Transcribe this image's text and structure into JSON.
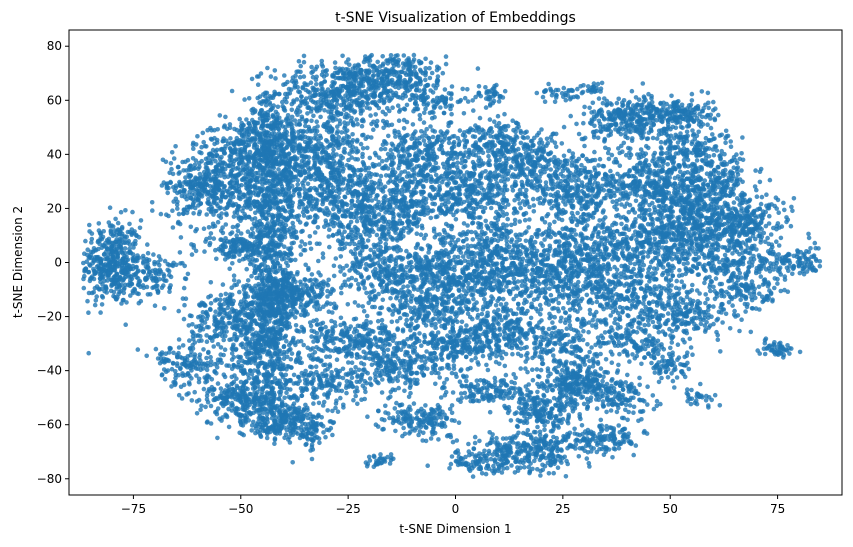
{
  "chart_data": {
    "type": "scatter",
    "title": "t-SNE Visualization of Embeddings",
    "xlabel": "t-SNE Dimension 1",
    "ylabel": "t-SNE Dimension 2",
    "xlim": [
      -90,
      90
    ],
    "ylim": [
      -86,
      86
    ],
    "xticks": [
      -75,
      -50,
      -25,
      0,
      25,
      50,
      75
    ],
    "yticks": [
      -80,
      -60,
      -40,
      -20,
      0,
      20,
      40,
      60,
      80
    ],
    "grid": false,
    "point_color": "#1f77b4",
    "point_alpha": 0.8,
    "points_approx": 10000,
    "clusters": [
      {
        "cx": -80,
        "cy": 0,
        "sx": 3.5,
        "sy": 8,
        "n": 420
      },
      {
        "cx": -70,
        "cy": -5,
        "sx": 4,
        "sy": 4,
        "n": 120
      },
      {
        "cx": -27,
        "cy": 62,
        "sx": 8,
        "sy": 6,
        "n": 500
      },
      {
        "cx": -14,
        "cy": 70,
        "sx": 6,
        "sy": 4,
        "n": 260
      },
      {
        "cx": -5,
        "cy": 60,
        "sx": 4,
        "sy": 3,
        "n": 90
      },
      {
        "cx": 8,
        "cy": 62,
        "sx": 2,
        "sy": 2,
        "n": 40
      },
      {
        "cx": 25,
        "cy": 63,
        "sx": 3,
        "sy": 2,
        "n": 40
      },
      {
        "cx": 32,
        "cy": 64,
        "sx": 1.5,
        "sy": 1.5,
        "n": 20
      },
      {
        "cx": -48,
        "cy": 42,
        "sx": 6,
        "sy": 5,
        "n": 320
      },
      {
        "cx": -52,
        "cy": 25,
        "sx": 8,
        "sy": 7,
        "n": 400
      },
      {
        "cx": -30,
        "cy": 30,
        "sx": 8,
        "sy": 10,
        "n": 520
      },
      {
        "cx": -20,
        "cy": 15,
        "sx": 6,
        "sy": 8,
        "n": 400
      },
      {
        "cx": -8,
        "cy": 40,
        "sx": 6,
        "sy": 6,
        "n": 320
      },
      {
        "cx": 5,
        "cy": 25,
        "sx": 6,
        "sy": 8,
        "n": 360
      },
      {
        "cx": 18,
        "cy": 35,
        "sx": 6,
        "sy": 6,
        "n": 320
      },
      {
        "cx": 28,
        "cy": 25,
        "sx": 5,
        "sy": 5,
        "n": 220
      },
      {
        "cx": 40,
        "cy": 53,
        "sx": 5,
        "sy": 4,
        "n": 280
      },
      {
        "cx": 52,
        "cy": 55,
        "sx": 4,
        "sy": 3,
        "n": 180
      },
      {
        "cx": 45,
        "cy": 30,
        "sx": 7,
        "sy": 7,
        "n": 450
      },
      {
        "cx": 55,
        "cy": 20,
        "sx": 6,
        "sy": 7,
        "n": 340
      },
      {
        "cx": 68,
        "cy": 15,
        "sx": 5,
        "sy": 5,
        "n": 200
      },
      {
        "cx": 78,
        "cy": 0,
        "sx": 4,
        "sy": 3,
        "n": 120
      },
      {
        "cx": 60,
        "cy": 5,
        "sx": 7,
        "sy": 8,
        "n": 420
      },
      {
        "cx": 40,
        "cy": -10,
        "sx": 8,
        "sy": 8,
        "n": 460
      },
      {
        "cx": 20,
        "cy": -5,
        "sx": 8,
        "sy": 8,
        "n": 460
      },
      {
        "cx": 0,
        "cy": -5,
        "sx": 7,
        "sy": 7,
        "n": 400
      },
      {
        "cx": -15,
        "cy": -5,
        "sx": 6,
        "sy": 6,
        "n": 260
      },
      {
        "cx": -38,
        "cy": -12,
        "sx": 5,
        "sy": 4,
        "n": 260
      },
      {
        "cx": -50,
        "cy": 5,
        "sx": 4,
        "sy": 3,
        "n": 140
      },
      {
        "cx": -52,
        "cy": -22,
        "sx": 5,
        "sy": 5,
        "n": 260
      },
      {
        "cx": -25,
        "cy": -28,
        "sx": 6,
        "sy": 4,
        "n": 260
      },
      {
        "cx": -12,
        "cy": -38,
        "sx": 6,
        "sy": 5,
        "n": 260
      },
      {
        "cx": 2,
        "cy": -30,
        "sx": 5,
        "sy": 4,
        "n": 220
      },
      {
        "cx": 12,
        "cy": -25,
        "sx": 5,
        "sy": 5,
        "n": 180
      },
      {
        "cx": -62,
        "cy": -38,
        "sx": 4,
        "sy": 4,
        "n": 140
      },
      {
        "cx": -50,
        "cy": -50,
        "sx": 5,
        "sy": 4,
        "n": 240
      },
      {
        "cx": -40,
        "cy": -58,
        "sx": 5,
        "sy": 4,
        "n": 220
      },
      {
        "cx": -30,
        "cy": -45,
        "sx": 6,
        "sy": 4,
        "n": 180
      },
      {
        "cx": -45,
        "cy": -35,
        "sx": 5,
        "sy": 4,
        "n": 160
      },
      {
        "cx": -43,
        "cy": 5,
        "sx": 4,
        "sy": 3,
        "n": 100
      },
      {
        "cx": -43,
        "cy": -25,
        "sx": 3,
        "sy": 3,
        "n": 80
      },
      {
        "cx": -43,
        "cy": -15,
        "sx": 4,
        "sy": 4,
        "n": 200
      },
      {
        "cx": -43,
        "cy": 30,
        "sx": 4,
        "sy": 4,
        "n": 120
      },
      {
        "cx": -43,
        "cy": 47,
        "sx": 3,
        "sy": 3,
        "n": 80
      },
      {
        "cx": -43,
        "cy": 38,
        "sx": 3,
        "sy": 3,
        "n": 80
      },
      {
        "cx": -43,
        "cy": 20,
        "sx": 3,
        "sy": 3,
        "n": 80
      },
      {
        "cx": -43,
        "cy": 12,
        "sx": 3,
        "sy": 3,
        "n": 80
      },
      {
        "cx": -43,
        "cy": 53,
        "sx": 3,
        "sy": 2,
        "n": 40
      },
      {
        "cx": -43,
        "cy": -5,
        "sx": 3,
        "sy": 3,
        "n": 80
      },
      {
        "cx": -43,
        "cy": -40,
        "sx": 3,
        "sy": 3,
        "n": 60
      },
      {
        "cx": -43,
        "cy": -50,
        "sx": 3,
        "sy": 3,
        "n": 60
      },
      {
        "cx": -43,
        "cy": -60,
        "sx": 3,
        "sy": 2,
        "n": 40
      },
      {
        "cx": -8,
        "cy": -58,
        "sx": 4,
        "sy": 3,
        "n": 160
      },
      {
        "cx": -43,
        "cy": 60,
        "sx": 2,
        "sy": 2,
        "n": 20
      },
      {
        "cx": -43,
        "cy": -30,
        "sx": 3,
        "sy": 3,
        "n": 60
      },
      {
        "cx": -45,
        "cy": 53,
        "sx": 2,
        "sy": 2,
        "n": 20
      },
      {
        "cx": -43,
        "cy": 1,
        "sx": 2,
        "sy": 2,
        "n": 20
      },
      {
        "cx": -43,
        "cy": -20,
        "sx": 2,
        "sy": 2,
        "n": 20
      },
      {
        "cx": -43,
        "cy": -10,
        "sx": 2,
        "sy": 2,
        "n": 20
      },
      {
        "cx": 8,
        "cy": -48,
        "sx": 5,
        "sy": 3,
        "n": 140
      },
      {
        "cx": 20,
        "cy": -55,
        "sx": 4,
        "sy": 4,
        "n": 180
      },
      {
        "cx": 28,
        "cy": -45,
        "sx": 5,
        "sy": 4,
        "n": 260
      },
      {
        "cx": 38,
        "cy": -50,
        "sx": 4,
        "sy": 4,
        "n": 120
      },
      {
        "cx": 18,
        "cy": -70,
        "sx": 7,
        "sy": 4,
        "n": 320
      },
      {
        "cx": 35,
        "cy": -65,
        "sx": 4,
        "sy": 3,
        "n": 120
      },
      {
        "cx": 5,
        "cy": -74,
        "sx": 4,
        "sy": 2,
        "n": 80
      },
      {
        "cx": -33,
        "cy": -63,
        "sx": 2,
        "sy": 3,
        "n": 60
      },
      {
        "cx": -18,
        "cy": -73,
        "sx": 2,
        "sy": 1.5,
        "n": 30
      },
      {
        "cx": 50,
        "cy": -38,
        "sx": 3,
        "sy": 3,
        "n": 70
      },
      {
        "cx": 57,
        "cy": -50,
        "sx": 2,
        "sy": 1.5,
        "n": 30
      },
      {
        "cx": 75,
        "cy": -32,
        "sx": 2,
        "sy": 1.5,
        "n": 50
      },
      {
        "cx": 42,
        "cy": -30,
        "sx": 5,
        "sy": 4,
        "n": 140
      },
      {
        "cx": 55,
        "cy": -20,
        "sx": 5,
        "sy": 4,
        "n": 160
      },
      {
        "cx": 68,
        "cy": -10,
        "sx": 4,
        "sy": 4,
        "n": 120
      },
      {
        "cx": 10,
        "cy": 45,
        "sx": 5,
        "sy": 4,
        "n": 160
      },
      {
        "cx": -35,
        "cy": 45,
        "sx": 5,
        "sy": 4,
        "n": 160
      },
      {
        "cx": -60,
        "cy": 30,
        "sx": 4,
        "sy": 4,
        "n": 140
      },
      {
        "cx": -10,
        "cy": 22,
        "sx": 5,
        "sy": 6,
        "n": 200
      },
      {
        "cx": 30,
        "cy": 5,
        "sx": 6,
        "sy": 6,
        "n": 240
      },
      {
        "cx": 10,
        "cy": 5,
        "sx": 6,
        "sy": 6,
        "n": 220
      },
      {
        "cx": 55,
        "cy": 42,
        "sx": 5,
        "sy": 4,
        "n": 160
      },
      {
        "cx": 45,
        "cy": 10,
        "sx": 5,
        "sy": 5,
        "n": 180
      },
      {
        "cx": -5,
        "cy": -18,
        "sx": 6,
        "sy": 5,
        "n": 200
      },
      {
        "cx": 25,
        "cy": -30,
        "sx": 6,
        "sy": 5,
        "n": 180
      },
      {
        "cx": 62,
        "cy": 30,
        "sx": 4,
        "sy": 4,
        "n": 120
      }
    ]
  }
}
